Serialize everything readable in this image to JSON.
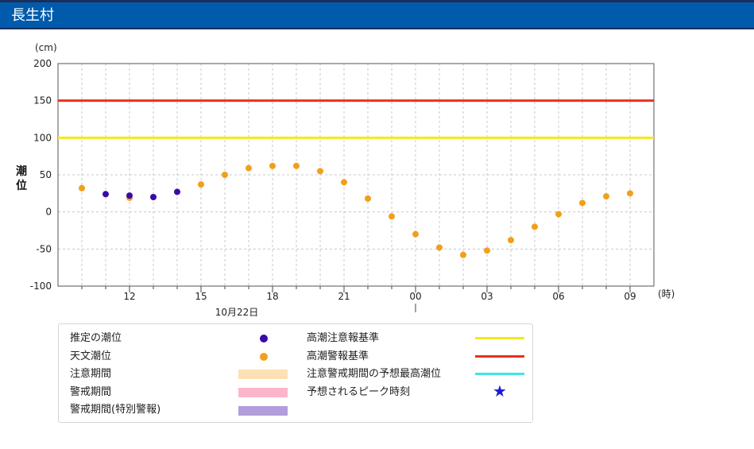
{
  "header": {
    "title": "長生村"
  },
  "chart_data": {
    "type": "scatter",
    "ylabel_unit": "(cm)",
    "ylabel": "潮位",
    "xlabel_unit": "(時)",
    "date_label": "10月22日",
    "ylim": [
      -100,
      200
    ],
    "yticks": [
      200,
      150,
      100,
      50,
      0,
      -50,
      -100
    ],
    "xticks": [
      {
        "x": 2,
        "label": "12"
      },
      {
        "x": 5,
        "label": "15"
      },
      {
        "x": 8,
        "label": "18"
      },
      {
        "x": 11,
        "label": "21"
      },
      {
        "x": 14,
        "label": "00"
      },
      {
        "x": 17,
        "label": "03"
      },
      {
        "x": 20,
        "label": "06"
      },
      {
        "x": 23,
        "label": "09"
      }
    ],
    "xlim": [
      -1,
      24
    ],
    "grid": true,
    "thresholds": [
      {
        "name": "高潮警報基準",
        "value": 150,
        "color": "#e8321e"
      },
      {
        "name": "高潮注意報基準",
        "value": 100,
        "color": "#f3ea1c"
      }
    ],
    "series": [
      {
        "name": "天文潮位",
        "color": "#f0a019",
        "x": [
          0,
          2,
          5,
          6,
          7,
          8,
          9,
          10,
          11,
          12,
          13,
          14,
          15,
          16,
          17,
          18,
          19,
          20,
          21,
          22,
          23
        ],
        "values": [
          32,
          19,
          37,
          50,
          59,
          62,
          62,
          55,
          40,
          18,
          -6,
          -30,
          -48,
          -58,
          -52,
          -38,
          -20,
          -3,
          12,
          21,
          25
        ]
      },
      {
        "name": "推定の潮位",
        "color": "#3a0aa8",
        "x": [
          1,
          2,
          3,
          4
        ],
        "values": [
          24,
          22,
          20,
          27
        ]
      }
    ]
  },
  "legend": {
    "estimated": "推定の潮位",
    "astronomical": "天文潮位",
    "caution_period": "注意期間",
    "warning_period": "警戒期間",
    "special_warning_period": "警戒期間(特別警報)",
    "advisory_standard": "高潮注意報基準",
    "warning_standard": "高潮警報基準",
    "peak_forecast": "注意警戒期間の予想最高潮位",
    "peak_time": "予想されるピーク時刻",
    "colors": {
      "estimated": "#3a0aa8",
      "astronomical": "#f0a019",
      "caution": "#fde0b4",
      "warning": "#fbb6cc",
      "special": "#b39ddb",
      "advisory_line": "#f3ea1c",
      "warning_line": "#e8321e",
      "peak_line": "#3ee6e6",
      "star": "#1a1ad6"
    }
  }
}
